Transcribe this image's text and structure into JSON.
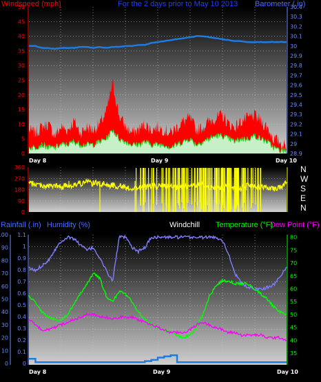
{
  "colors": {
    "wind": "#ff0000",
    "gust_fill": "#ff0000",
    "wind_avg": "#2bd92b",
    "wind_fill": "#c8f0c8",
    "barometer": "#1e7be0",
    "direction": "#ffff00",
    "rain": "#1e7be0",
    "humidity": "#7f7fff",
    "temperature": "#00ff00",
    "dewpoint": "#ff00ff",
    "windchill": "#ffffff",
    "axis_left_top": "#ff0000",
    "axis_right_top": "#6b8cff",
    "rain_axis": "#6b8cff",
    "temp_axis": "#00ff00"
  },
  "chart_data": [
    {
      "type": "line",
      "title": "For the 2 days prior to   May 10 2013",
      "left_label": "Windspeed (mph)",
      "right_label": "Barometer (.in)",
      "x_labels": [
        "Day 8",
        "Day 9",
        "Day 10"
      ],
      "y_left_ticks": [
        "0",
        "5",
        "10",
        "15",
        "20",
        "25",
        "30",
        "35",
        "40",
        "45",
        "50"
      ],
      "y_right_ticks": [
        "29.9",
        "30"
      ],
      "y_left_range": [
        0,
        50
      ],
      "y_right_range": [
        28.9,
        30.4
      ],
      "barometer": [
        30.0,
        30.0,
        29.98,
        29.98,
        29.97,
        29.98,
        29.98,
        29.98,
        29.99,
        29.99,
        29.98,
        29.99,
        29.98,
        29.99,
        29.99,
        30.0,
        30.0,
        30.01,
        30.01,
        30.03,
        30.04,
        30.05,
        30.06,
        30.07,
        30.08,
        30.09,
        30.1,
        30.1,
        30.09,
        30.08,
        30.07,
        30.06,
        30.05,
        30.05,
        30.04,
        30.04,
        30.04,
        30.04,
        30.04,
        30.04,
        30.04
      ],
      "wind_gust": [
        8,
        7,
        9,
        10,
        6,
        9,
        8,
        11,
        7,
        9,
        8,
        10,
        14,
        24,
        13,
        9,
        7,
        8,
        10,
        8,
        9,
        8,
        7,
        9,
        11,
        12,
        8,
        9,
        11,
        12,
        13,
        10,
        9,
        11,
        12,
        13,
        11,
        9,
        5,
        4,
        2
      ],
      "wind_avg": [
        2,
        2,
        3,
        2,
        2,
        3,
        3,
        4,
        3,
        3,
        3,
        4,
        5,
        8,
        5,
        4,
        3,
        3,
        4,
        3,
        3,
        3,
        2,
        3,
        4,
        5,
        3,
        4,
        5,
        6,
        6,
        5,
        4,
        5,
        5,
        6,
        5,
        4,
        2,
        1,
        1
      ]
    },
    {
      "type": "line",
      "y_ticks": [
        "0",
        "90",
        "180",
        "270",
        "360"
      ],
      "y_range": [
        0,
        360
      ],
      "compass": [
        "N",
        "W",
        "S",
        "E",
        "N"
      ],
      "x_labels": [
        "Day 8",
        "Day 9",
        "Day 10"
      ],
      "direction": [
        230,
        225,
        215,
        205,
        210,
        200,
        215,
        220,
        230,
        240,
        230,
        230,
        220,
        215,
        210,
        200,
        190,
        195,
        200,
        210,
        205,
        210,
        200,
        195,
        200,
        210,
        220,
        215,
        200,
        195,
        190,
        205,
        200,
        195,
        210,
        200,
        195,
        205,
        190,
        200,
        240
      ]
    },
    {
      "type": "line",
      "labels": {
        "rainfall": "Rainfall (.in)",
        "humidity": "Humidity (%)",
        "windchill": "Windchill",
        "temperature": "Temperature (°F)",
        "dewpoint": "Dew Point (°F)"
      },
      "y_humidity_ticks": [
        "0",
        "10",
        "20",
        "30",
        "40",
        "50",
        "60",
        "70",
        "80",
        "90",
        "100"
      ],
      "y_rain_ticks": [
        "0",
        "0.1",
        "0.2",
        "0.3",
        "0.4",
        "0.5",
        "0.6",
        "0.7",
        "0.8",
        "0.9",
        "1",
        "1.1"
      ],
      "y_temp_ticks": [
        "35",
        "40",
        "45",
        "50",
        "55",
        "60",
        "65",
        "70",
        "75",
        "80"
      ],
      "humidity_range": [
        0,
        100
      ],
      "temp_range": [
        31,
        81
      ],
      "x_labels": [
        "Day 8",
        "Day 9",
        "Day 10"
      ],
      "humidity": [
        74,
        72,
        76,
        80,
        88,
        95,
        98,
        97,
        92,
        88,
        90,
        82,
        72,
        64,
        98,
        98,
        90,
        87,
        90,
        98,
        98,
        98,
        98,
        98,
        98,
        98,
        98,
        98,
        98,
        98,
        96,
        85,
        70,
        62,
        59,
        58,
        58,
        59,
        61,
        68,
        75
      ],
      "temperature": [
        57,
        55,
        51,
        49,
        48,
        48,
        50,
        54,
        58,
        62,
        66,
        64,
        57,
        55,
        59,
        58,
        55,
        51,
        48,
        46,
        45,
        44,
        43,
        42,
        41,
        42,
        45,
        50,
        57,
        61,
        63,
        63,
        62,
        62,
        62,
        60,
        58,
        56,
        53,
        51,
        50
      ],
      "dewpoint": [
        48,
        46,
        44,
        44,
        45,
        46,
        47,
        48,
        49,
        50,
        50,
        49,
        49,
        48,
        49,
        49,
        49,
        48,
        47,
        46,
        45,
        44,
        43,
        43,
        43,
        44,
        46,
        47,
        46,
        45,
        44,
        43,
        43,
        42,
        42,
        42,
        42,
        41,
        41,
        41,
        40
      ],
      "rain": [
        0.04,
        0.01,
        0.01,
        0.01,
        0.01,
        0.01,
        0.01,
        0.01,
        0.01,
        0.01,
        0.01,
        0.01,
        0.01,
        0.01,
        0.01,
        0.01,
        0.01,
        0.01,
        0.02,
        0.03,
        0.05,
        0.06,
        0.07,
        0.01,
        0.01,
        0.01,
        0.01,
        0.01,
        0.01,
        0.01,
        0.01,
        0.01,
        0.01,
        0.01,
        0.01,
        0.01,
        0.01,
        0.01,
        0.01,
        0.01,
        0.01
      ]
    }
  ]
}
